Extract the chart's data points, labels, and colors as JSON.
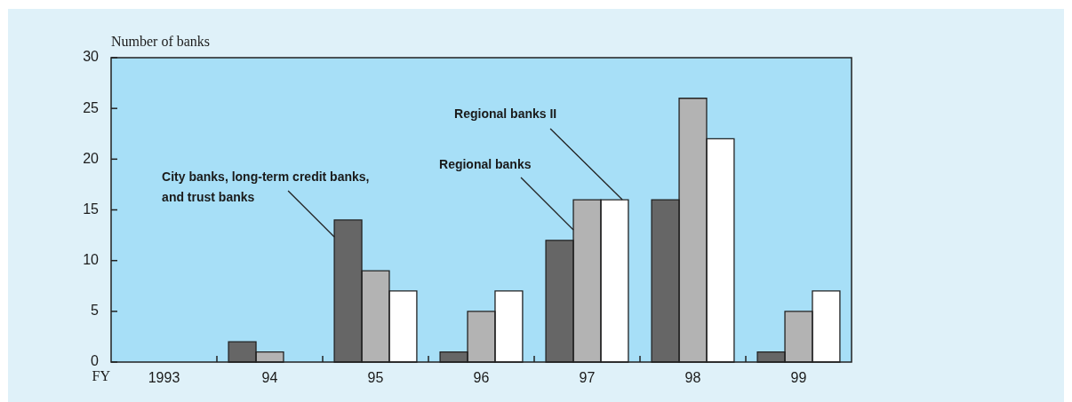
{
  "chart_data": {
    "type": "bar",
    "ylabel": "Number of banks",
    "xlabel": "FY",
    "categories": [
      "1993",
      "94",
      "95",
      "96",
      "97",
      "98",
      "99"
    ],
    "series": [
      {
        "name": "City banks, long-term credit banks, and trust banks",
        "color": "#666666",
        "values": [
          0,
          2,
          14,
          1,
          12,
          16,
          1
        ]
      },
      {
        "name": "Regional banks",
        "color": "#b3b3b3",
        "values": [
          0,
          1,
          9,
          5,
          16,
          26,
          5
        ]
      },
      {
        "name": "Regional banks II",
        "color": "#ffffff",
        "values": [
          0,
          0,
          7,
          7,
          16,
          22,
          7
        ]
      }
    ],
    "ylim": [
      0,
      30
    ],
    "yticks": [
      0,
      5,
      10,
      15,
      20,
      25,
      30
    ]
  }
}
